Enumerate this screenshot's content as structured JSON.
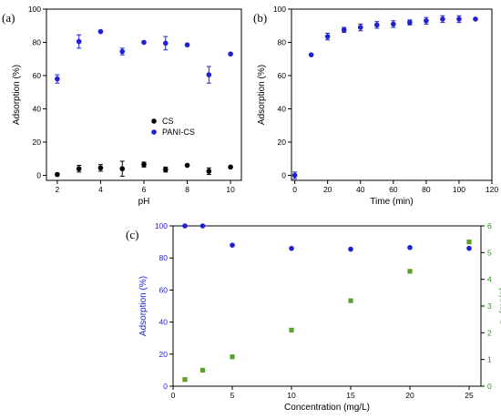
{
  "panel_labels": [
    "(a)",
    "(b)",
    "(c)"
  ],
  "colors": {
    "cs": "#000000",
    "pani": "#1f1fd6",
    "qe": "#5aa02c",
    "left_axis_c": "#1f1fd6",
    "right_axis_c": "#2e8b1e"
  },
  "chart_data": [
    {
      "type": "scatter",
      "panel": "(a)",
      "xlabel": "pH",
      "ylabel": "Adsorption (%)",
      "xlim": [
        1.5,
        10.5
      ],
      "ylim": [
        -3,
        100
      ],
      "xticks": [
        2,
        4,
        6,
        8,
        10
      ],
      "yticks": [
        0,
        20,
        40,
        60,
        80,
        100
      ],
      "legend_position": "lower-right",
      "series": [
        {
          "name": "CS",
          "color": "#000000",
          "x": [
            2,
            3,
            4,
            5,
            6,
            7,
            8,
            9,
            10
          ],
          "y": [
            0.5,
            4,
            4.5,
            4,
            6.5,
            3.5,
            6,
            2.5,
            5
          ],
          "err": [
            0,
            2,
            2,
            4.5,
            1.5,
            1.5,
            0,
            2,
            0
          ]
        },
        {
          "name": "PANI-CS",
          "color": "#1f1fd6",
          "x": [
            2,
            3,
            4,
            5,
            6,
            7,
            8,
            9,
            10
          ],
          "y": [
            58,
            80.5,
            86.5,
            74.5,
            80,
            79.5,
            78.5,
            60.5,
            73
          ],
          "err": [
            2.5,
            4,
            0,
            2,
            0,
            4,
            0,
            5,
            0
          ]
        }
      ]
    },
    {
      "type": "scatter",
      "panel": "(b)",
      "xlabel": "Time (min)",
      "ylabel": "Adsorption (%)",
      "xlim": [
        -2,
        120
      ],
      "ylim": [
        -3,
        100
      ],
      "xticks": [
        0,
        20,
        40,
        60,
        80,
        100,
        120
      ],
      "yticks": [
        0,
        20,
        40,
        60,
        80,
        100
      ],
      "series": [
        {
          "name": "",
          "color": "#1f1fd6",
          "x": [
            0,
            10,
            20,
            30,
            40,
            50,
            60,
            70,
            80,
            90,
            100,
            110
          ],
          "y": [
            0,
            72.5,
            83.5,
            87.5,
            89,
            90.5,
            91,
            92,
            93,
            94,
            94,
            94
          ],
          "err": [
            2,
            0,
            2,
            1.5,
            2,
            2,
            2,
            1.5,
            2,
            2,
            2,
            0
          ]
        }
      ]
    },
    {
      "type": "scatter",
      "panel": "(c)",
      "xlabel": "Concentration (mg/L)",
      "ylabel": "Adsorption (%)",
      "y2label_main": "q",
      "y2label_sub": "e",
      "y2label_unit": " (mg/g)",
      "xlim": [
        0,
        26
      ],
      "ylim": [
        0,
        100
      ],
      "y2lim": [
        0,
        6
      ],
      "xticks": [
        0,
        5,
        10,
        15,
        20,
        25
      ],
      "yticks": [
        0,
        20,
        40,
        60,
        80,
        100
      ],
      "y2ticks": [
        0,
        1,
        2,
        3,
        4,
        5,
        6
      ],
      "series": [
        {
          "name": "",
          "axis": "left",
          "color": "#1f1fd6",
          "marker": "circle",
          "x": [
            1,
            2.5,
            5,
            10,
            15,
            20,
            25
          ],
          "y": [
            100,
            100,
            88,
            86,
            85.5,
            86.5,
            86
          ]
        },
        {
          "name": "",
          "axis": "right",
          "color": "#5aa02c",
          "marker": "square",
          "x": [
            1,
            2.5,
            5,
            10,
            15,
            20,
            25
          ],
          "y": [
            0.25,
            0.6,
            1.1,
            2.1,
            3.2,
            4.3,
            5.4
          ]
        }
      ]
    }
  ]
}
